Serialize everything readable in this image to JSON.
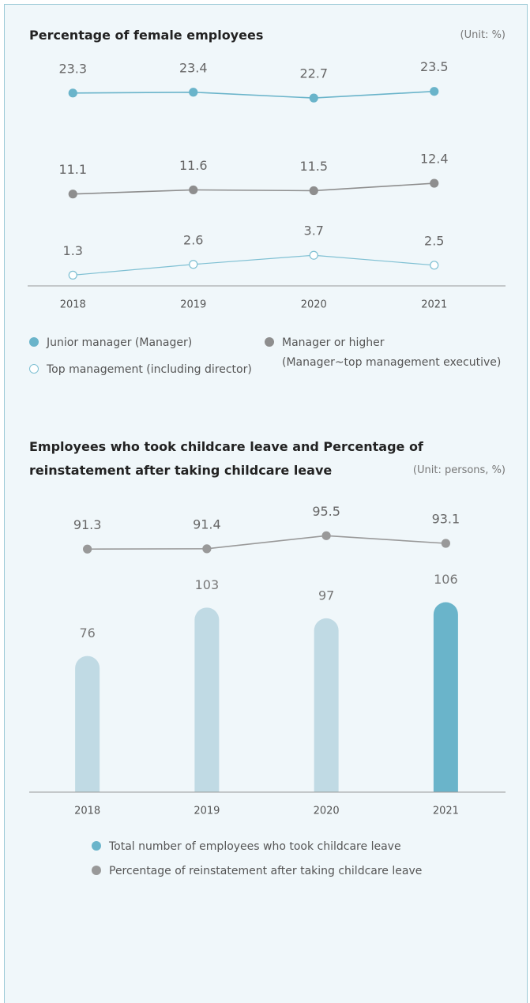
{
  "chart_data": [
    {
      "type": "line",
      "title": "Percentage of female employees",
      "unit": "(Unit: %)",
      "categories": [
        "2018",
        "2019",
        "2020",
        "2021"
      ],
      "ylim": [
        0,
        25
      ],
      "series": [
        {
          "name": "Junior manager (Manager)",
          "color": "#6ab4ca",
          "hollow": false,
          "values": [
            23.3,
            23.4,
            22.7,
            23.5
          ]
        },
        {
          "name": "Manager or higher\n(Manager~top management executive)",
          "color": "#8e8e8e",
          "hollow": false,
          "values": [
            11.1,
            11.6,
            11.5,
            12.4
          ]
        },
        {
          "name": "Top management (including director)",
          "color": "#7fc0d3",
          "hollow": true,
          "values": [
            1.3,
            2.6,
            3.7,
            2.5
          ]
        }
      ]
    },
    {
      "type": "bar",
      "title": "Employees who took childcare leave and Percentage of reinstatement after taking childcare leave",
      "unit": "(Unit: persons, %)",
      "categories": [
        "2018",
        "2019",
        "2020",
        "2021"
      ],
      "ylim": [
        0,
        160
      ],
      "y2lim": [
        15,
        105
      ],
      "series": [
        {
          "name": "Total number of employees who took childcare leave",
          "type": "bar",
          "color": "#6ab4ca",
          "colors": [
            "#c0dae4",
            "#c0dae4",
            "#c0dae4",
            "#6ab4ca"
          ],
          "values": [
            76,
            103,
            97,
            106
          ]
        },
        {
          "name": "Percentage of reinstatement after taking childcare leave",
          "type": "line",
          "axis": "y2",
          "color": "#999999",
          "values": [
            91.3,
            91.4,
            95.5,
            93.1
          ]
        }
      ]
    }
  ]
}
